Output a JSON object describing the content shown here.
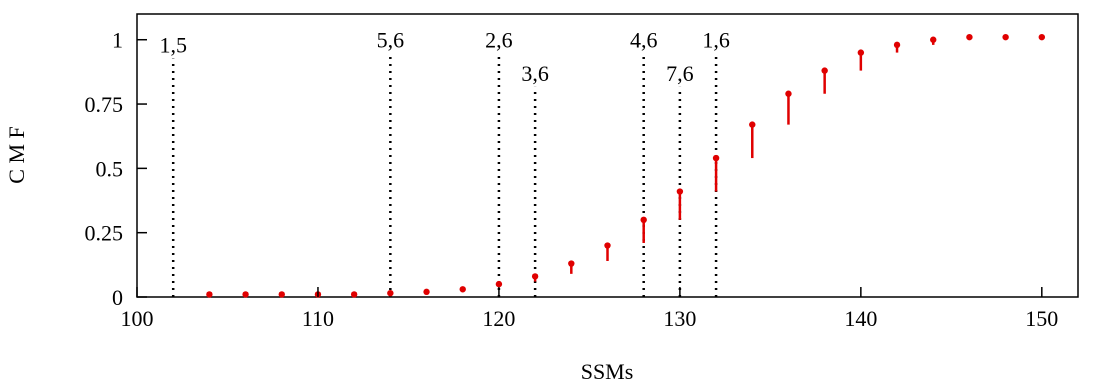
{
  "chart_data": {
    "type": "scatter",
    "xlabel": "SSMs",
    "ylabel": "C M F",
    "xlim": [
      100,
      152
    ],
    "ylim": [
      0,
      1.1
    ],
    "xticks": [
      100,
      110,
      120,
      130,
      140,
      150
    ],
    "xtick_labels": [
      "100",
      "110",
      "120",
      "130",
      "140",
      "150"
    ],
    "yticks": [
      0,
      0.25,
      0.5,
      0.75,
      1
    ],
    "ytick_labels": [
      "0",
      "0.25",
      "0.5",
      "0.75",
      "1"
    ],
    "grid": false,
    "series": [
      {
        "color": "#e00000",
        "points": [
          {
            "x": 104,
            "y": 0.01,
            "low": 0.01
          },
          {
            "x": 106,
            "y": 0.01,
            "low": 0.01
          },
          {
            "x": 108,
            "y": 0.01,
            "low": 0.01
          },
          {
            "x": 110,
            "y": 0.01,
            "low": 0.01
          },
          {
            "x": 112,
            "y": 0.01,
            "low": 0.01
          },
          {
            "x": 114,
            "y": 0.015,
            "low": 0.015
          },
          {
            "x": 116,
            "y": 0.02,
            "low": 0.02
          },
          {
            "x": 118,
            "y": 0.03,
            "low": 0.03
          },
          {
            "x": 120,
            "y": 0.05,
            "low": 0.05
          },
          {
            "x": 122,
            "y": 0.08,
            "low": 0.06
          },
          {
            "x": 124,
            "y": 0.13,
            "low": 0.09
          },
          {
            "x": 126,
            "y": 0.2,
            "low": 0.14
          },
          {
            "x": 128,
            "y": 0.3,
            "low": 0.21
          },
          {
            "x": 130,
            "y": 0.41,
            "low": 0.3
          },
          {
            "x": 132,
            "y": 0.54,
            "low": 0.41
          },
          {
            "x": 134,
            "y": 0.67,
            "low": 0.54
          },
          {
            "x": 136,
            "y": 0.79,
            "low": 0.67
          },
          {
            "x": 138,
            "y": 0.88,
            "low": 0.79
          },
          {
            "x": 140,
            "y": 0.95,
            "low": 0.88
          },
          {
            "x": 142,
            "y": 0.98,
            "low": 0.95
          },
          {
            "x": 144,
            "y": 1.0,
            "low": 0.98
          },
          {
            "x": 146,
            "y": 1.01,
            "low": 1.01
          },
          {
            "x": 148,
            "y": 1.01,
            "low": 1.01
          },
          {
            "x": 150,
            "y": 1.01,
            "low": 1.01
          }
        ]
      }
    ],
    "vertical_lines": [
      {
        "x": 102,
        "label": "1,5",
        "label_y": 0.95
      },
      {
        "x": 114,
        "label": "5,6",
        "label_y": 0.97
      },
      {
        "x": 120,
        "label": "2,6",
        "label_y": 0.97
      },
      {
        "x": 122,
        "label": "3,6",
        "label_y": 0.84
      },
      {
        "x": 128,
        "label": "4,6",
        "label_y": 0.97
      },
      {
        "x": 130,
        "label": "7,6",
        "label_y": 0.84
      },
      {
        "x": 132,
        "label": "1,6",
        "label_y": 0.97
      }
    ]
  }
}
